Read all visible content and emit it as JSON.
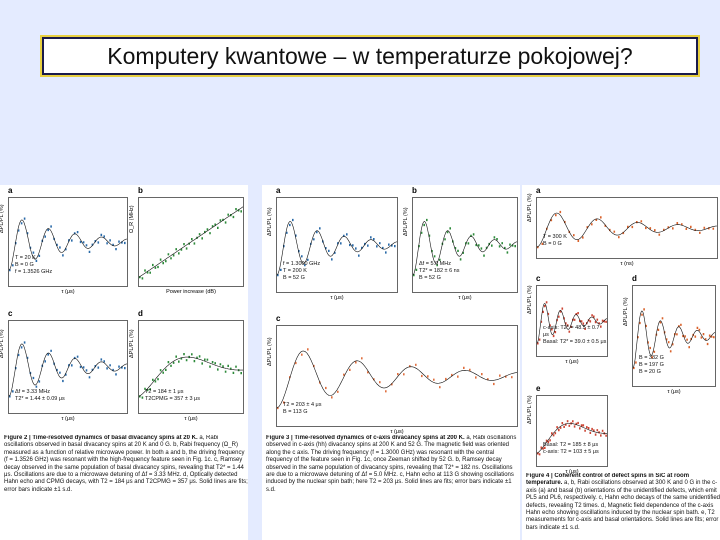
{
  "header": {
    "title": "Komputery kwantowe – w temperaturze pokojowej?"
  },
  "figures": [
    {
      "panels": [
        {
          "label": "a",
          "notes": [
            "T = 20 K",
            "B = 0 G",
            "f = 1.3526 GHz"
          ],
          "xlabel": "τ (μs)",
          "ylabel": "ΔPL/PL (%)"
        },
        {
          "label": "b",
          "notes": [],
          "xlabel": "Power increase (dB)",
          "ylabel": "Ω_R (MHz)"
        },
        {
          "label": "c",
          "notes": [
            "Δf = 3.33 MHz",
            "T2* = 1.44 ± 0.09 μs"
          ],
          "xlabel": "τ (μs)",
          "ylabel": "ΔPL/PL (%)"
        },
        {
          "label": "d",
          "notes": [
            "T2 = 184 ± 1 μs",
            "T2CPMG = 357 ± 3 μs"
          ],
          "xlabel": "τ (μs)",
          "ylabel": "ΔPL/PL (%)"
        }
      ],
      "caption_title": "Figure 2 | Time-resolved dynamics of basal divacancy spins at 20 K.",
      "caption": "a, Rabi oscillations observed in basal divacancy spins at 20 K and 0 G. b, Rabi frequency (Ω_R) measured as a function of relative microwave power. In both a and b, the driving frequency (f = 1.3526 GHz) was resonant with the high-frequency feature seen in Fig. 1c. c, Ramsey decay observed in the same population of basal divacancy spins, revealing that T2* = 1.44 μs. Oscillations are due to a microwave detuning of Δf = 3.33 MHz. d, Optically detected Hahn echo and CPMG decays, with T2 = 184 μs and T2CPMG = 357 μs. Solid lines are fits; error bars indicate ±1 s.d."
    },
    {
      "panels": [
        {
          "label": "a",
          "notes": [
            "f = 1.3000 GHz",
            "T = 200 K",
            "B = 52 G"
          ],
          "xlabel": "τ (μs)",
          "ylabel": "ΔPL/PL (%)"
        },
        {
          "label": "b",
          "notes": [
            "Δf = 5.0 MHz",
            "T2* = 182 ± 6 ns",
            "B = 52 G"
          ],
          "xlabel": "τ (μs)",
          "ylabel": "ΔPL/PL (%)"
        },
        {
          "label": "c",
          "notes": [
            "T2 = 203 ± 4 μs",
            "B = 113 G"
          ],
          "xlabel": "τ (μs)",
          "ylabel": "ΔPL/PL (%)"
        }
      ],
      "caption_title": "Figure 3 | Time-resolved dynamics of c-axis divacancy spins at 200 K.",
      "caption": "a, Rabi oscillations observed in c-axis (hh) divacancy spins at 200 K and 52 G. The magnetic field was oriented along the c axis. The driving frequency (f = 1.3000 GHz) was resonant with the central frequency of the feature seen in Fig. 1c, once Zeeman shifted by 52 G. b, Ramsey decay observed in the same population of divacancy spins, revealing that T2* = 182 ns. Oscillations are due to a microwave detuning of Δf = 5.0 MHz. c, Hahn echo at 113 G showing oscillations induced by the nuclear spin bath; here T2 = 203 μs. Solid lines are fits; error bars indicate ±1 s.d."
    },
    {
      "panels": [
        {
          "label": "a",
          "notes": [
            "T = 300 K",
            "B = 0 G"
          ],
          "xlabel": "τ (ns)",
          "ylabel": "ΔPL/PL (%)"
        },
        {
          "label": "c",
          "notes": [
            "c-axis: T2* = 48.5 ± 0.7 μs",
            "Basal: T2* = 39.0 ± 0.5 μs"
          ],
          "xlabel": "τ (μs)",
          "ylabel": "ΔPL/PL (%)"
        },
        {
          "label": "d",
          "notes": [
            "B = 332 G",
            "B = 197 G",
            "B = 20 G"
          ],
          "xlabel": "τ (μs)",
          "ylabel": "ΔPL/PL (%)"
        },
        {
          "label": "e",
          "notes": [
            "Basal: T2 = 185 ± 8 μs",
            "c-axis: T2 = 103 ± 5 μs"
          ],
          "xlabel": "τ (μs)",
          "ylabel": "ΔPL/PL (%)"
        }
      ],
      "caption_title": "Figure 4 | Coherent control of defect spins in SiC at room temperature.",
      "caption": "a, b, Rabi oscillations observed at 300 K and 0 G in the c-axis (a) and basal (b) orientations of the unidentified defects, which emit PL5 and PL6, respectively. c, Hahn echo decays of the same unidentified defects, revealing T2 times. d, Magnetic field dependence of the c-axis Hahn echo showing oscillations induced by the nuclear spin bath. e, T2 measurements for c-axis and basal orientations. Solid lines are fits; error bars indicate ±1 s.d."
    }
  ]
}
